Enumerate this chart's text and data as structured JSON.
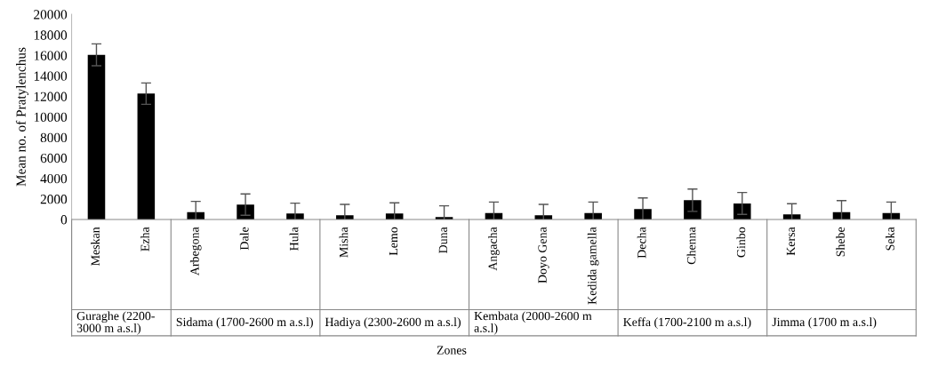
{
  "chart_data": {
    "type": "bar",
    "xlabel": "Zones",
    "ylabel": "Mean no. of Pratylenchus",
    "categories": [
      "Meskan",
      "Ezha",
      "Arbegona",
      "Dale",
      "Hula",
      "Misha",
      "Lemo",
      "Duna",
      "Angacha",
      "Doyo Gena",
      "Kedida gamella",
      "Decha",
      "Chenna",
      "Ginbo",
      "Kersa",
      "Shebe",
      "Seka"
    ],
    "series": [
      {
        "color": "#000000",
        "values": [
          16050,
          12270,
          720,
          1450,
          580,
          400,
          580,
          230,
          630,
          400,
          630,
          1010,
          1880,
          1560,
          490,
          720,
          630
        ],
        "errors": [
          1070,
          1040,
          1040,
          1040,
          1010,
          1070,
          1040,
          1100,
          1070,
          1070,
          1070,
          1090,
          1090,
          1070,
          1040,
          1120,
          1070
        ]
      }
    ],
    "ylim": [
      0,
      20000
    ],
    "yticks": [
      0,
      2000,
      4000,
      6000,
      8000,
      10000,
      12000,
      14000,
      16000,
      18000,
      20000
    ],
    "grid": false,
    "legend": false,
    "annotations": [
      "Guraghe (2200-3000 m a.s.l)",
      "Sidama (1700-2600 m a.s.l)",
      "Hadiya (2300-2600 m a.s.l)",
      "Kembata (2000-2600 m a.s.l)",
      "Keffa (1700-2100 m a.s.l)",
      "Jimma (1700 m a.s.l)"
    ]
  }
}
